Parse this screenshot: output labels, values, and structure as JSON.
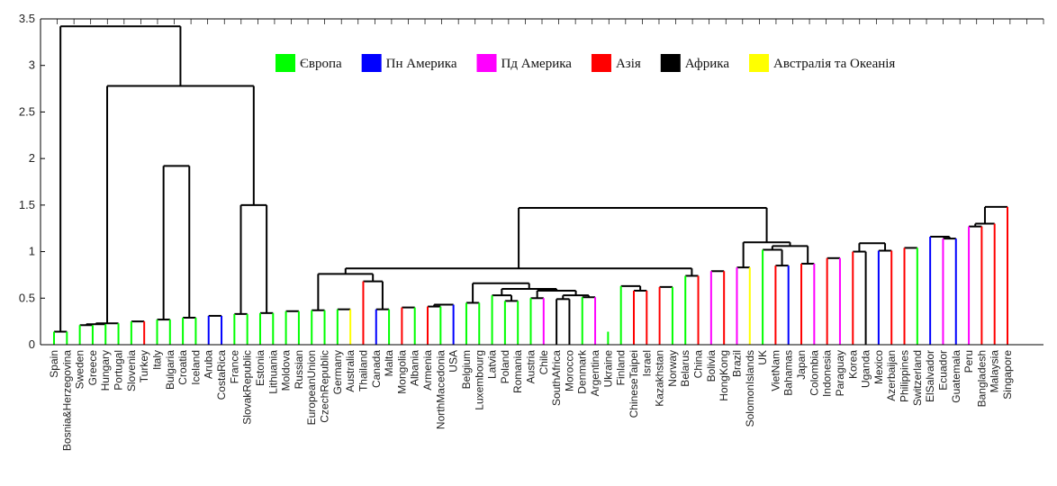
{
  "chart_data": {
    "type": "dendrogram",
    "ylim": [
      0,
      3.5
    ],
    "yticks": [
      "0",
      "0.5",
      "1",
      "1.5",
      "2",
      "2.5",
      "3",
      "3.5"
    ],
    "legend": {
      "placement": "top-right",
      "entries": [
        {
          "label": "Європа",
          "color": "#00ff00"
        },
        {
          "label": "Пн Америка",
          "color": "#0000ff"
        },
        {
          "label": "Пд Америка",
          "color": "#ff00ff"
        },
        {
          "label": "Азія",
          "color": "#ff0000"
        },
        {
          "label": "Африка",
          "color": "#000000"
        },
        {
          "label": "Австралія та Океанія",
          "color": "#ffff00"
        }
      ]
    },
    "leaves": [
      {
        "label": "Spain",
        "region": "Європа"
      },
      {
        "label": "Bosnia&Herzegovina",
        "region": "Європа"
      },
      {
        "label": "Sweden",
        "region": "Європа"
      },
      {
        "label": "Greece",
        "region": "Європа"
      },
      {
        "label": "Hungary",
        "region": "Європа"
      },
      {
        "label": "Portugal",
        "region": "Європа"
      },
      {
        "label": "Slovenia",
        "region": "Європа"
      },
      {
        "label": "Turkey",
        "region": "Азія"
      },
      {
        "label": "Italy",
        "region": "Європа"
      },
      {
        "label": "Bulgaria",
        "region": "Європа"
      },
      {
        "label": "Croatia",
        "region": "Європа"
      },
      {
        "label": "Iceland",
        "region": "Європа"
      },
      {
        "label": "Aruba",
        "region": "Пн Америка"
      },
      {
        "label": "CostaRica",
        "region": "Пн Америка"
      },
      {
        "label": "France",
        "region": "Європа"
      },
      {
        "label": "SlovakRepublic",
        "region": "Європа"
      },
      {
        "label": "Estonia",
        "region": "Європа"
      },
      {
        "label": "Lithuania",
        "region": "Європа"
      },
      {
        "label": "Moldova",
        "region": "Європа"
      },
      {
        "label": "Russian",
        "region": "Європа"
      },
      {
        "label": "EuropeanUnion",
        "region": "Європа"
      },
      {
        "label": "CzechRepublic",
        "region": "Європа"
      },
      {
        "label": "Germany",
        "region": "Європа"
      },
      {
        "label": "Australia",
        "region": "Австралія та Океанія"
      },
      {
        "label": "Thailand",
        "region": "Азія"
      },
      {
        "label": "Canada",
        "region": "Пн Америка"
      },
      {
        "label": "Malta",
        "region": "Європа"
      },
      {
        "label": "Mongolia",
        "region": "Азія"
      },
      {
        "label": "Albania",
        "region": "Європа"
      },
      {
        "label": "Armenia",
        "region": "Азія"
      },
      {
        "label": "NorthMacedonia",
        "region": "Європа"
      },
      {
        "label": "USA",
        "region": "Пн Америка"
      },
      {
        "label": "Belgium",
        "region": "Європа"
      },
      {
        "label": "Luxembourg",
        "region": "Європа"
      },
      {
        "label": "Latvia",
        "region": "Європа"
      },
      {
        "label": "Poland",
        "region": "Європа"
      },
      {
        "label": "Romania",
        "region": "Європа"
      },
      {
        "label": "Austria",
        "region": "Європа"
      },
      {
        "label": "Chile",
        "region": "Пд Америка"
      },
      {
        "label": "SouthAfrica",
        "region": "Африка"
      },
      {
        "label": "Morocco",
        "region": "Африка"
      },
      {
        "label": "Denmark",
        "region": "Європа"
      },
      {
        "label": "Argentina",
        "region": "Пд Америка"
      },
      {
        "label": "Ukraine",
        "region": "Європа"
      },
      {
        "label": "Finland",
        "region": "Європа"
      },
      {
        "label": "ChineseTaipei",
        "region": "Азія"
      },
      {
        "label": "Israel",
        "region": "Азія"
      },
      {
        "label": "Kazakhstan",
        "region": "Азія"
      },
      {
        "label": "Norway",
        "region": "Європа"
      },
      {
        "label": "Belarus",
        "region": "Європа"
      },
      {
        "label": "China",
        "region": "Азія"
      },
      {
        "label": "Bolivia",
        "region": "Пд Америка"
      },
      {
        "label": "HongKong",
        "region": "Азія"
      },
      {
        "label": "Brazil",
        "region": "Пд Америка"
      },
      {
        "label": "SolomonIslands",
        "region": "Австралія та Океанія"
      },
      {
        "label": "UK",
        "region": "Європа"
      },
      {
        "label": "VietNam",
        "region": "Азія"
      },
      {
        "label": "Bahamas",
        "region": "Пн Америка"
      },
      {
        "label": "Japan",
        "region": "Азія"
      },
      {
        "label": "Colombia",
        "region": "Пд Америка"
      },
      {
        "label": "Indonesia",
        "region": "Азія"
      },
      {
        "label": "Paraguay",
        "region": "Пд Америка"
      },
      {
        "label": "Korea",
        "region": "Азія"
      },
      {
        "label": "Uganda",
        "region": "Африка"
      },
      {
        "label": "Mexico",
        "region": "Пн Америка"
      },
      {
        "label": "Azerbaijan",
        "region": "Азія"
      },
      {
        "label": "Philippines",
        "region": "Азія"
      },
      {
        "label": "Switzerland",
        "region": "Європа"
      },
      {
        "label": "ElSalvador",
        "region": "Пн Америка"
      },
      {
        "label": "Ecuador",
        "region": "Пд Америка"
      },
      {
        "label": "Guatemala",
        "region": "Пн Америка"
      },
      {
        "label": "Peru",
        "region": "Пд Америка"
      },
      {
        "label": "Bangladesh",
        "region": "Азія"
      },
      {
        "label": "Malaysia",
        "region": "Азія"
      },
      {
        "label": "Singapore",
        "region": "Азія"
      }
    ],
    "merges": [
      {
        "a": 0,
        "b": 1,
        "height": 0.14
      },
      {
        "a": 2,
        "b": 3,
        "height": 0.21
      },
      {
        "a": 4,
        "b": 5,
        "height": 0.23
      },
      {
        "a": 6,
        "b": 7,
        "height": 0.25
      },
      {
        "a": 8,
        "b": 9,
        "height": 0.27
      },
      {
        "a": 12,
        "b": 13,
        "height": 0.31
      },
      {
        "a": 14,
        "b": 15,
        "height": 0.33
      },
      {
        "a": 16,
        "b": 17,
        "height": 0.34
      },
      {
        "a": 18,
        "b": 19,
        "height": 0.36
      },
      {
        "a": 20,
        "b": 21,
        "height": 0.37
      },
      {
        "a": 22,
        "b": 23,
        "height": 0.38
      },
      {
        "a": 25,
        "b": 26,
        "height": 0.38
      },
      {
        "a": 27,
        "b": 28,
        "height": 0.4
      },
      {
        "a": 30,
        "b": 31,
        "height": 0.43
      },
      {
        "a": 32,
        "b": 33,
        "height": 0.45
      },
      {
        "a": 35,
        "b": 36,
        "height": 0.47
      },
      {
        "a": 37,
        "b": 38,
        "height": 0.5
      },
      {
        "a": 39,
        "b": 40,
        "height": 0.49
      },
      {
        "a": 41,
        "b": 42,
        "height": 0.51
      },
      {
        "a": 45,
        "b": 46,
        "height": 0.58
      },
      {
        "a": 47,
        "b": 48,
        "height": 0.62
      },
      {
        "a": 51,
        "b": 52,
        "height": 0.79
      },
      {
        "a": 53,
        "b": 54,
        "height": 0.83
      },
      {
        "a": 56,
        "b": 57,
        "height": 0.85
      },
      {
        "a": 58,
        "b": 59,
        "height": 0.87
      },
      {
        "a": 60,
        "b": 61,
        "height": 0.93
      },
      {
        "a": 62,
        "b": 63,
        "height": 1.0
      },
      {
        "a": 64,
        "b": 65,
        "height": 1.01
      },
      {
        "a": 66,
        "b": 67,
        "height": 1.04
      },
      {
        "a": 69,
        "b": 70,
        "height": 1.14
      },
      {
        "a": 71,
        "b": 72,
        "height": 1.27
      },
      {
        "a": 2,
        "b": 4,
        "height": 0.22
      },
      {
        "a": 10,
        "b": 11,
        "height": 0.29
      },
      {
        "a": 29,
        "b": 30,
        "height": 0.41
      },
      {
        "a": 34,
        "b": 35,
        "height": 0.53
      },
      {
        "a": 39,
        "b": 41,
        "height": 0.53
      },
      {
        "a": 37,
        "b": 39,
        "height": 0.58
      },
      {
        "a": 34,
        "b": 37,
        "height": 0.6
      },
      {
        "a": 44,
        "b": 45,
        "height": 0.63
      },
      {
        "a": 32,
        "b": 34,
        "height": 0.66
      },
      {
        "a": 24,
        "b": 25,
        "height": 0.68
      },
      {
        "a": 49,
        "b": 50,
        "height": 0.74
      },
      {
        "a": 20,
        "b": 24,
        "height": 0.76
      },
      {
        "a": 55,
        "b": 56,
        "height": 1.02
      },
      {
        "a": 55,
        "b": 58,
        "height": 1.06
      },
      {
        "a": 62,
        "b": 64,
        "height": 1.09
      },
      {
        "a": 53,
        "b": 55,
        "height": 1.1
      },
      {
        "a": 68,
        "b": 69,
        "height": 1.16
      },
      {
        "a": 71,
        "b": 73,
        "height": 1.3
      },
      {
        "a": 14,
        "b": 16,
        "height": 1.5
      },
      {
        "a": 0,
        "b": 2,
        "height": 3.42
      },
      {
        "a": 2,
        "b": 14,
        "height": 2.78
      },
      {
        "a": 8,
        "b": 10,
        "height": 1.92
      },
      {
        "a": 20,
        "b": 49,
        "height": 0.82
      },
      {
        "a": 20,
        "b": 53,
        "height": 1.47
      },
      {
        "a": 71,
        "b": 74,
        "height": 1.48
      }
    ]
  }
}
